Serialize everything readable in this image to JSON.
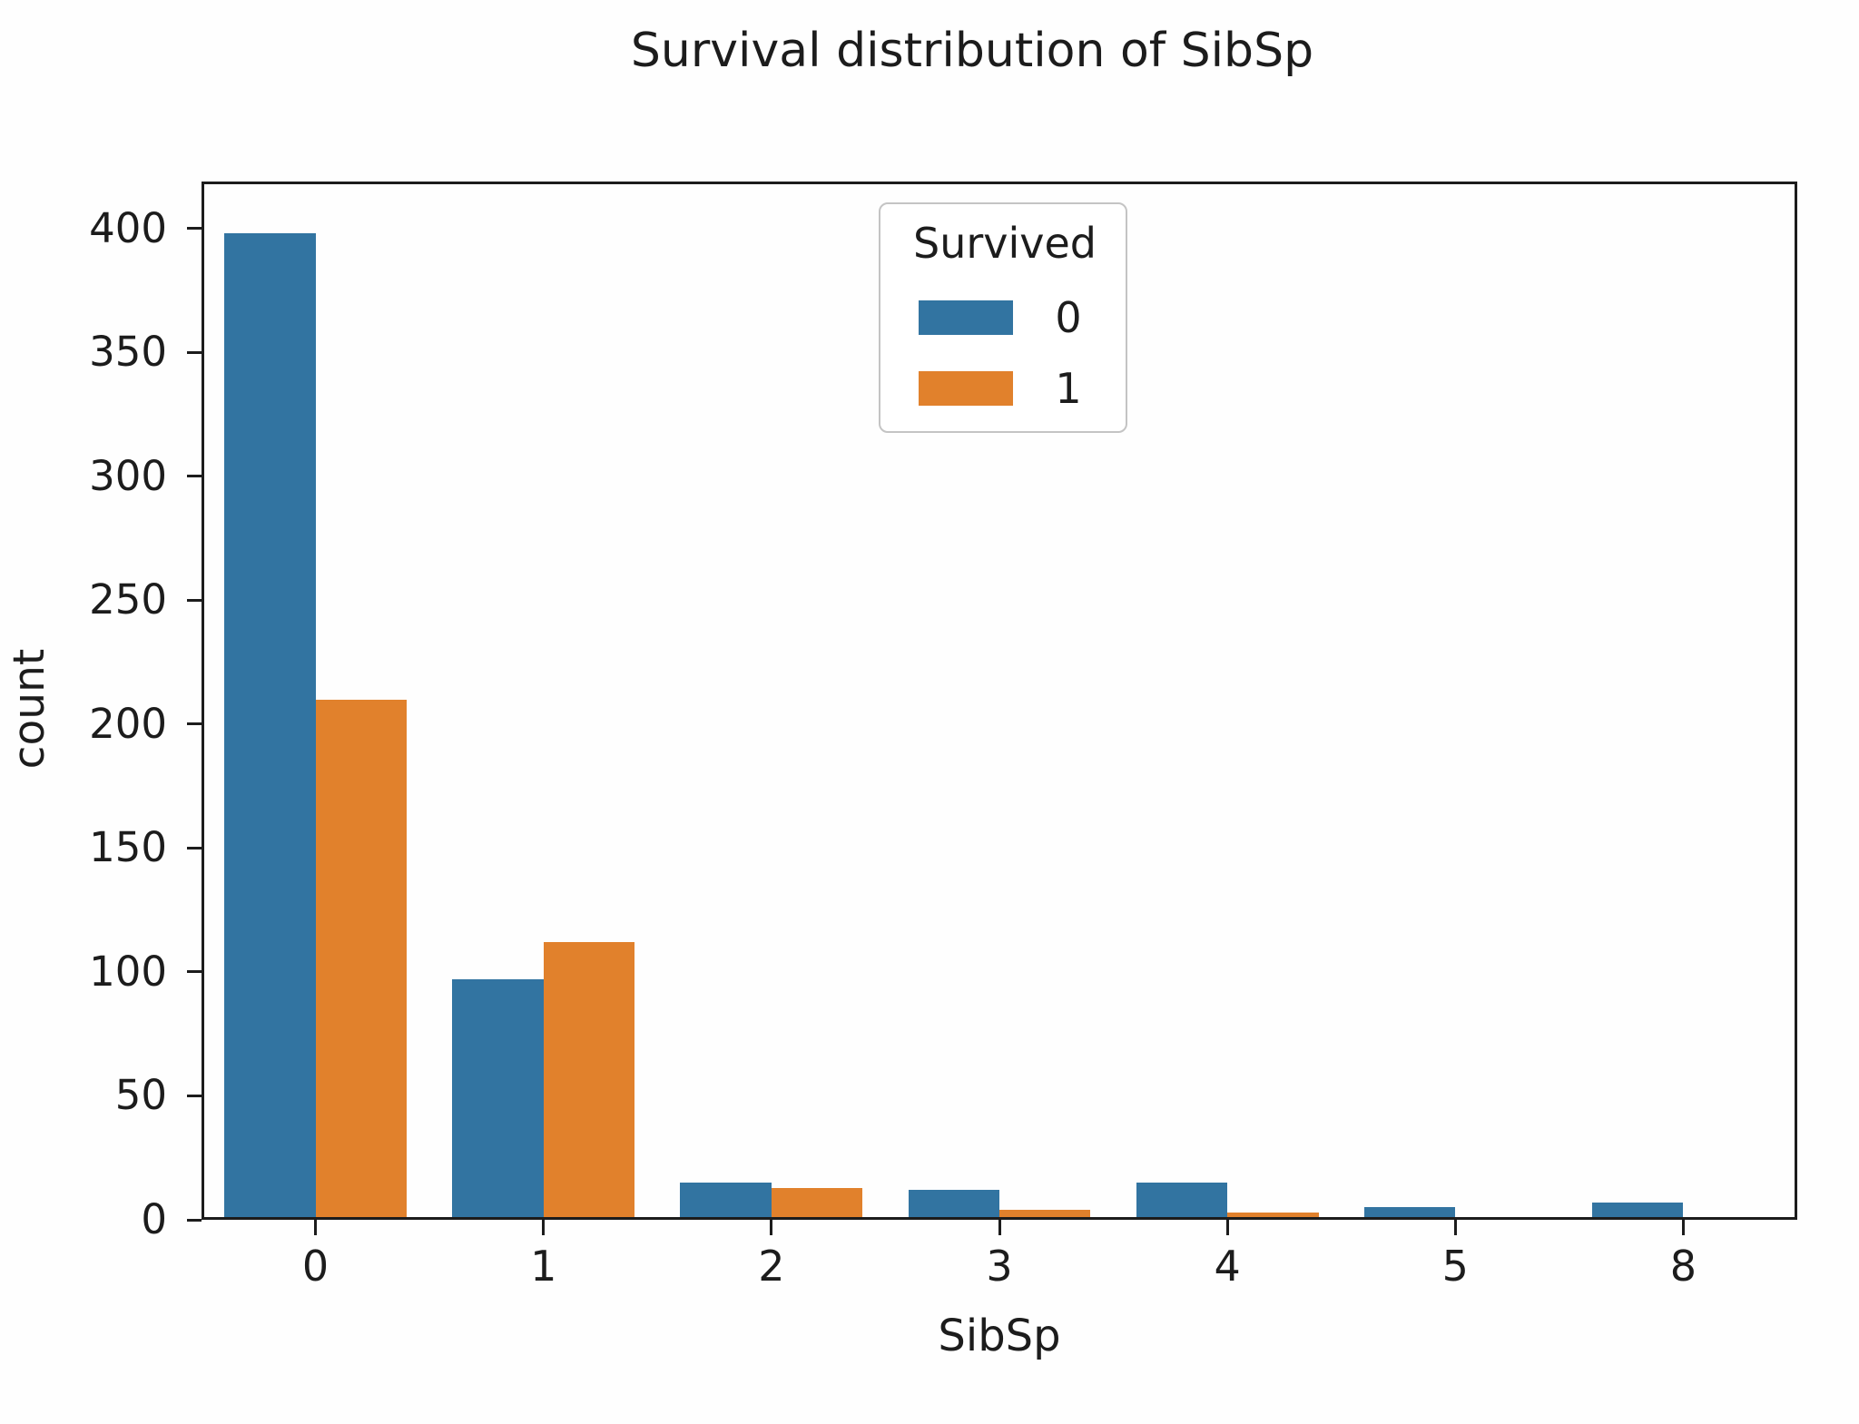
{
  "chart_data": {
    "type": "bar",
    "title": "Survival distribution of SibSp",
    "xlabel": "SibSp",
    "ylabel": "count",
    "categories": [
      "0",
      "1",
      "2",
      "3",
      "4",
      "5",
      "8"
    ],
    "series": [
      {
        "name": "0",
        "color": "#3274a1",
        "values": [
          398,
          97,
          15,
          12,
          15,
          5,
          7
        ]
      },
      {
        "name": "1",
        "color": "#e1812c",
        "values": [
          210,
          112,
          13,
          4,
          3,
          0,
          0
        ]
      }
    ],
    "ylim": [
      0,
      419
    ],
    "yticks": [
      0,
      50,
      100,
      150,
      200,
      250,
      300,
      350,
      400
    ],
    "grid": false,
    "bar_group_width": 0.8,
    "legend": {
      "title": "Survived",
      "position": "upper center-left",
      "entries": [
        "0",
        "1"
      ]
    },
    "colors": {
      "axis": "#1c1c1c",
      "text": "#1c1c1c",
      "legend_border": "#c4c4c4",
      "background": "#fefefe"
    }
  }
}
